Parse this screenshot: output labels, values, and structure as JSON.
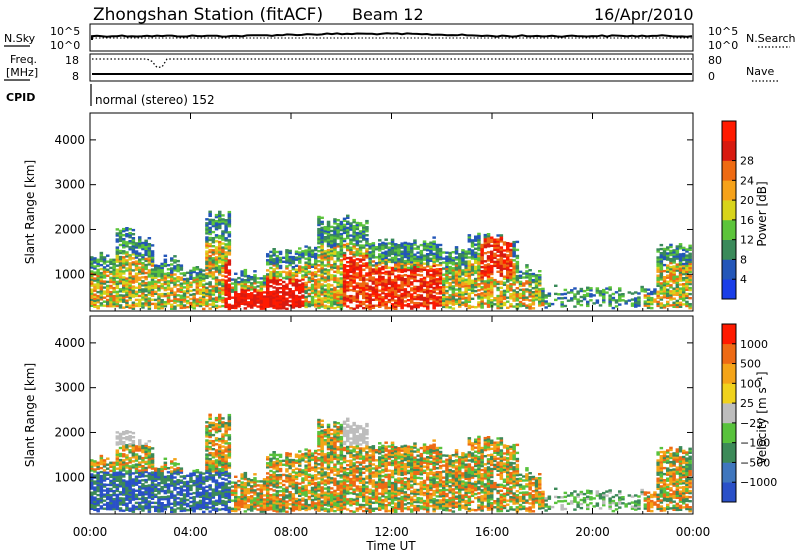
{
  "header": {
    "station": "Zhongshan Station (fitACF)",
    "beam": "Beam 12",
    "date": "16/Apr/2010"
  },
  "status_panel": {
    "nsky_label": "N.Sky",
    "nsearch_label": "N.Search",
    "freq_label_top": "Freq.",
    "freq_label_bottom": "[MHz]",
    "nave_label": "Nave",
    "cpid_label": "CPID",
    "nsky_ticks": [
      "10^5",
      "10^0"
    ],
    "nsearch_ticks": [
      "10^5",
      "10^0"
    ],
    "freq_ticks": [
      "18",
      "8"
    ],
    "nave_ticks": [
      "80",
      "0"
    ],
    "cpid_text": "normal (stereo) 152"
  },
  "x_axis": {
    "label": "Time UT",
    "ticks": [
      "00:00",
      "04:00",
      "08:00",
      "12:00",
      "16:00",
      "20:00",
      "00:00"
    ]
  },
  "chart_data": [
    {
      "type": "heatmap",
      "panel": "power",
      "ylabel": "Slant Range [km]",
      "yticks": [
        1000,
        2000,
        3000,
        4000
      ],
      "ylim": [
        180,
        4600
      ],
      "xlim_hours": [
        0,
        24
      ],
      "colorbar_label": "Power [dB]",
      "colorbar_ticks": [
        "4",
        "8",
        "12",
        "16",
        "20",
        "24",
        "28"
      ],
      "colorbar_colors": [
        "#1a3ee8",
        "#2356b8",
        "#3a8a5a",
        "#5cc43a",
        "#d8d41a",
        "#f6a21a",
        "#ee6a12",
        "#d81a10",
        "#ff1a00"
      ],
      "grid": false,
      "legend": "colorbar-right"
    },
    {
      "type": "heatmap",
      "panel": "velocity",
      "ylabel": "Slant Range [km]",
      "yticks": [
        1000,
        2000,
        3000,
        4000
      ],
      "ylim": [
        180,
        4600
      ],
      "xlim_hours": [
        0,
        24
      ],
      "colorbar_label": "Velocity [m s⁻¹]",
      "colorbar_ticks": [
        "1000",
        "500",
        "100",
        "25",
        "−25",
        "−100",
        "−500",
        "−1000"
      ],
      "colorbar_colors": [
        "#2a50c8",
        "#3f76bd",
        "#3c8a58",
        "#58c23c",
        "#bdbdbd",
        "#f0d21c",
        "#f4a418",
        "#ee6a14",
        "#ff1a00"
      ],
      "grid": false,
      "legend": "colorbar-right"
    }
  ]
}
